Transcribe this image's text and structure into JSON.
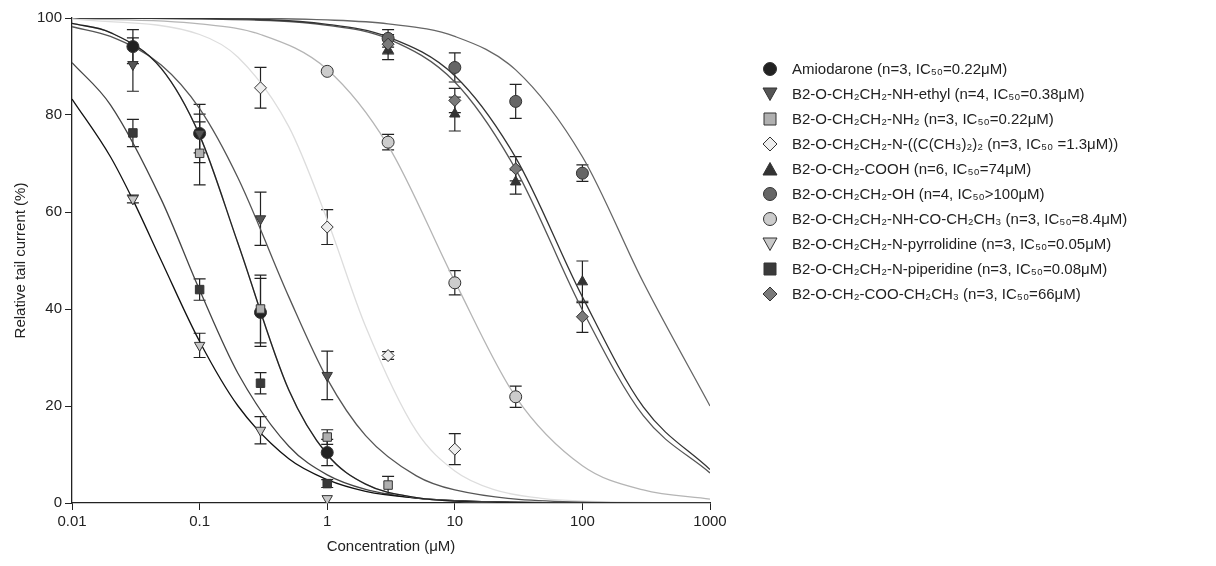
{
  "chart_data": {
    "type": "scatter",
    "xlabel": "Concentration (μM)",
    "ylabel": "Relative tail current (%)",
    "log": "x",
    "xlim": [
      0.01,
      1000
    ],
    "xticks": [
      0.01,
      0.1,
      1,
      10,
      100,
      1000
    ],
    "ylim": [
      0,
      100
    ],
    "yticks": [
      0,
      20,
      40,
      60,
      80,
      100
    ],
    "grid": false,
    "legend": "right",
    "series": [
      {
        "name": "Amiodarone (n=3, IC₅₀=0.22μM)",
        "color": "#222222",
        "marker": "circle",
        "x": [
          0.03,
          0.1,
          0.3,
          1
        ],
        "values": [
          94.1,
          76.2,
          39.3,
          10.4
        ],
        "errors": [
          3.5,
          4,
          7,
          2.7
        ]
      },
      {
        "name": "B2-O-CH₂CH₂-NH-ethyl (n=4, IC₅₀=0.38μM)",
        "color": "#555555",
        "marker": "triangle-down",
        "x": [
          0.03,
          0.1,
          0.3,
          1
        ],
        "values": [
          90.4,
          76.2,
          58.6,
          26.3
        ],
        "errors": [
          5.5,
          6,
          5.5,
          5
        ]
      },
      {
        "name": "B2-O-CH₂CH₂-NH₂ (n=3, IC₅₀=0.22μM)",
        "color": "#b0b0b0",
        "marker": "square",
        "x": [
          0.1,
          0.3,
          1,
          3
        ],
        "values": [
          72.1,
          40.0,
          13.6,
          3.7
        ],
        "errors": [
          6.5,
          7,
          1.5,
          1.8
        ]
      },
      {
        "name": "B2-O-CH₂CH₂-N-((C(CH₃)₂)₂ (n=3, IC₅₀ =1.3μM))",
        "color": "#eeeeee",
        "marker": "diamond",
        "x": [
          0.3,
          1,
          3,
          10
        ],
        "values": [
          85.6,
          56.9,
          30.4,
          11.1
        ],
        "errors": [
          4.2,
          3.6,
          0.8,
          3.2
        ]
      },
      {
        "name": "B2-O-CH₂-COOH (n=6, IC₅₀=74μM)",
        "color": "#333333",
        "marker": "triangle",
        "x": [
          3,
          10,
          30,
          100
        ],
        "values": [
          93.4,
          80.2,
          66.2,
          45.6
        ],
        "errors": [
          2,
          3.5,
          2.5,
          4.3
        ]
      },
      {
        "name": "B2-O-CH₂CH₂-OH (n=4, IC₅₀>100μM)",
        "color": "#666666",
        "marker": "circle",
        "x": [
          3,
          10,
          30,
          100
        ],
        "values": [
          95.8,
          89.8,
          82.8,
          68.0
        ],
        "errors": [
          1.8,
          3,
          3.5,
          1.7
        ]
      },
      {
        "name": "B2-O-CH₂CH₂-NH-CO-CH₂CH₃ (n=3, IC₅₀=8.4μM)",
        "color": "#cccccc",
        "marker": "circle",
        "x": [
          1,
          3,
          10,
          30
        ],
        "values": [
          89.0,
          74.4,
          45.4,
          21.9
        ],
        "errors": [
          null,
          1.6,
          2.5,
          2.2
        ]
      },
      {
        "name": "B2-O-CH₂CH₂-N-pyrrolidine (n=3, IC₅₀=0.05μM)",
        "color": "#c8c8c8",
        "marker": "triangle-down",
        "x": [
          0.03,
          0.1,
          0.3,
          1
        ],
        "values": [
          62.7,
          32.5,
          15.0,
          0.9
        ],
        "errors": [
          0.8,
          2.5,
          2.8,
          null
        ]
      },
      {
        "name": "B2-O-CH₂CH₂-N-piperidine (n=3, IC₅₀=0.08μM)",
        "color": "#3a3a3a",
        "marker": "square",
        "x": [
          0.03,
          0.1,
          0.3,
          1
        ],
        "values": [
          76.3,
          44.0,
          24.7,
          4.0
        ],
        "errors": [
          2.8,
          2.2,
          2.2,
          0.8
        ]
      },
      {
        "name": "B2-O-CH₂-COO-CH₂CH₃ (n=3, IC₅₀=66μM)",
        "color": "#7a7a7a",
        "marker": "diamond",
        "x": [
          3,
          10,
          30,
          100
        ],
        "values": [
          94.6,
          83.0,
          68.9,
          38.4
        ],
        "errors": [
          2,
          2.5,
          2.5,
          3.2
        ]
      },
      {
        "type": "line",
        "color": "#222222",
        "marker": "none",
        "x": [
          0.01,
          0.02,
          0.05,
          0.1,
          0.2,
          0.5,
          1,
          2,
          5,
          10,
          100,
          1000
        ],
        "values": [
          98.9,
          97.0,
          89.6,
          75.8,
          53.5,
          23.3,
          10.0,
          3.9,
          1.1,
          0.4,
          0.0,
          0.0
        ]
      },
      {
        "type": "line",
        "color": "#555555",
        "marker": "none",
        "x": [
          0.01,
          0.02,
          0.05,
          0.1,
          0.2,
          0.5,
          1,
          2,
          5,
          10,
          100,
          1000
        ],
        "values": [
          98.2,
          96.2,
          90.3,
          81.3,
          67.0,
          42.5,
          25.6,
          13.9,
          5.6,
          2.7,
          0.2,
          0.0
        ]
      },
      {
        "type": "line",
        "color": "#aaaaaa",
        "marker": "none",
        "x": [
          0.01,
          0.02,
          0.05,
          0.1,
          0.2,
          0.5,
          1,
          2,
          5,
          10,
          100,
          1000
        ],
        "values": [
          98.9,
          97.0,
          89.6,
          75.8,
          53.5,
          23.3,
          10.0,
          3.9,
          1.1,
          0.4,
          0.0,
          0.0
        ]
      },
      {
        "type": "line",
        "color": "#dddddd",
        "marker": "none",
        "x": [
          0.01,
          0.1,
          0.2,
          0.5,
          1,
          2,
          5,
          10,
          20,
          50,
          100,
          1000
        ],
        "values": [
          99.8,
          96.6,
          91.9,
          77.6,
          58.4,
          36.4,
          14.8,
          6.6,
          2.8,
          0.9,
          0.4,
          0.0
        ]
      },
      {
        "type": "line",
        "color": "#333333",
        "marker": "none",
        "x": [
          0.01,
          0.1,
          1,
          3,
          10,
          30,
          100,
          300,
          1000
        ],
        "values": [
          100.0,
          99.9,
          98.7,
          96.1,
          88.1,
          71.2,
          42.5,
          19.8,
          6.9
        ]
      },
      {
        "type": "line",
        "color": "#666666",
        "marker": "none",
        "x": [
          0.01,
          0.1,
          1,
          3,
          10,
          30,
          100,
          300,
          1000
        ],
        "values": [
          100.0,
          100.0,
          99.6,
          98.8,
          96.2,
          89.3,
          71.4,
          45.5,
          20.0
        ]
      },
      {
        "type": "line",
        "color": "#b5b5b5",
        "marker": "none",
        "x": [
          0.01,
          0.1,
          0.3,
          1,
          3,
          10,
          30,
          100,
          300,
          1000
        ],
        "values": [
          99.9,
          98.8,
          96.6,
          89.4,
          73.7,
          45.7,
          21.9,
          7.7,
          2.7,
          0.8
        ]
      },
      {
        "type": "line",
        "color": "#111111",
        "marker": "none",
        "x": [
          0.01,
          0.02,
          0.03,
          0.05,
          0.1,
          0.2,
          0.5,
          1,
          2,
          5,
          10,
          100,
          1000
        ],
        "values": [
          83.3,
          71.4,
          62.5,
          50.0,
          33.3,
          20.0,
          9.1,
          4.8,
          2.4,
          1.0,
          0.5,
          0.0,
          0.0
        ]
      },
      {
        "type": "line",
        "color": "#444444",
        "marker": "none",
        "x": [
          0.01,
          0.02,
          0.05,
          0.1,
          0.2,
          0.5,
          1,
          2,
          5,
          10,
          100,
          1000
        ],
        "values": [
          90.8,
          82.1,
          62.6,
          43.9,
          26.7,
          11.7,
          5.8,
          2.8,
          1.0,
          0.5,
          0.0,
          0.0
        ]
      },
      {
        "type": "line",
        "color": "#555555",
        "marker": "none",
        "x": [
          0.01,
          0.1,
          1,
          3,
          10,
          30,
          100,
          300,
          1000
        ],
        "values": [
          100.0,
          99.8,
          98.5,
          95.7,
          86.8,
          68.8,
          39.8,
          18.0,
          6.2
        ]
      }
    ]
  }
}
